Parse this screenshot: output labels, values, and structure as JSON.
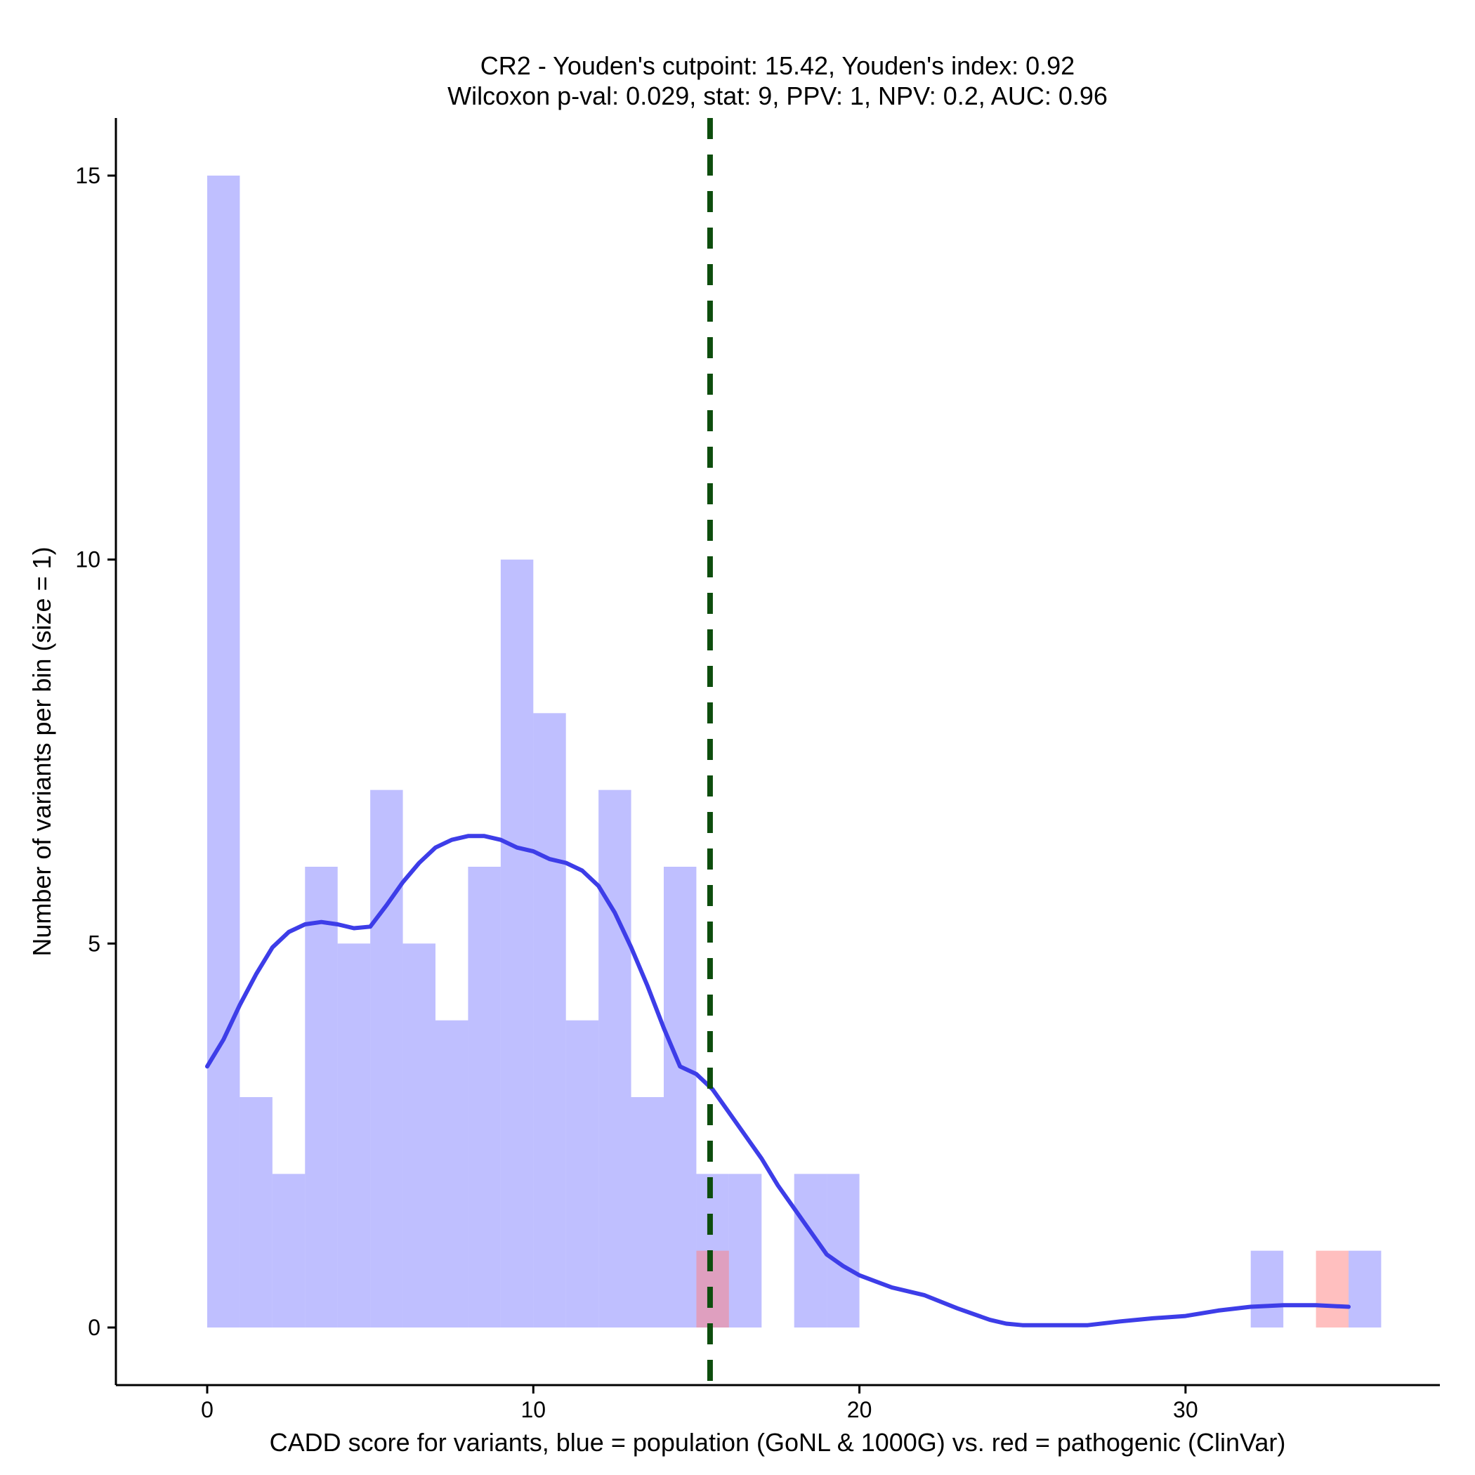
{
  "chart_data": {
    "type": "bar",
    "title_line1": "CR2 - Youden's cutpoint: 15.42, Youden's index: 0.92",
    "title_line2": "Wilcoxon p-val: 0.029, stat: 9, PPV: 1, NPV: 0.2, AUC: 0.96",
    "xlabel": "CADD score for variants, blue = population (GoNL & 1000G) vs. red = pathogenic (ClinVar)",
    "ylabel": "Number of variants per bin (size = 1)",
    "xlim": [
      -2.8,
      37.8
    ],
    "ylim": [
      -0.75,
      15.75
    ],
    "x_ticks": [
      0,
      10,
      20,
      30
    ],
    "x_tick_labels": [
      "0",
      "10",
      "20",
      "30"
    ],
    "y_ticks": [
      0,
      5,
      10,
      15
    ],
    "y_tick_labels": [
      "0",
      "5",
      "10",
      "15"
    ],
    "bin_width": 1,
    "colors": {
      "population": "#8080ff",
      "pathogenic": "#ff8080",
      "overlap": "#cc88bb",
      "density": "#3d3de8",
      "cutpoint": "#0d4d0d"
    },
    "series": [
      {
        "name": "population",
        "bins": [
          {
            "x0": 0,
            "count": 15
          },
          {
            "x0": 1,
            "count": 3
          },
          {
            "x0": 2,
            "count": 2
          },
          {
            "x0": 3,
            "count": 6
          },
          {
            "x0": 4,
            "count": 5
          },
          {
            "x0": 5,
            "count": 7
          },
          {
            "x0": 6,
            "count": 5
          },
          {
            "x0": 7,
            "count": 4
          },
          {
            "x0": 8,
            "count": 6
          },
          {
            "x0": 9,
            "count": 10
          },
          {
            "x0": 10,
            "count": 8
          },
          {
            "x0": 11,
            "count": 4
          },
          {
            "x0": 12,
            "count": 7
          },
          {
            "x0": 13,
            "count": 3
          },
          {
            "x0": 14,
            "count": 6
          },
          {
            "x0": 15,
            "count": 2
          },
          {
            "x0": 16,
            "count": 2
          },
          {
            "x0": 18,
            "count": 2
          },
          {
            "x0": 19,
            "count": 2
          },
          {
            "x0": 32,
            "count": 1
          },
          {
            "x0": 35,
            "count": 1
          }
        ]
      },
      {
        "name": "pathogenic",
        "bins": [
          {
            "x0": 15,
            "count": 1
          },
          {
            "x0": 34,
            "count": 1
          }
        ]
      }
    ],
    "density_curve": [
      [
        0,
        3.4
      ],
      [
        0.5,
        3.75
      ],
      [
        1,
        4.2
      ],
      [
        1.5,
        4.6
      ],
      [
        2,
        4.95
      ],
      [
        2.5,
        5.15
      ],
      [
        3,
        5.25
      ],
      [
        3.5,
        5.28
      ],
      [
        4,
        5.25
      ],
      [
        4.5,
        5.2
      ],
      [
        5,
        5.22
      ],
      [
        5.5,
        5.5
      ],
      [
        6,
        5.8
      ],
      [
        6.5,
        6.05
      ],
      [
        7,
        6.25
      ],
      [
        7.5,
        6.35
      ],
      [
        8,
        6.4
      ],
      [
        8.5,
        6.4
      ],
      [
        9,
        6.35
      ],
      [
        9.5,
        6.25
      ],
      [
        10,
        6.2
      ],
      [
        10.5,
        6.1
      ],
      [
        11,
        6.05
      ],
      [
        11.5,
        5.95
      ],
      [
        12,
        5.75
      ],
      [
        12.5,
        5.4
      ],
      [
        13,
        4.95
      ],
      [
        13.5,
        4.45
      ],
      [
        14,
        3.9
      ],
      [
        14.5,
        3.4
      ],
      [
        15,
        3.3
      ],
      [
        15.5,
        3.1
      ],
      [
        16,
        2.8
      ],
      [
        16.5,
        2.5
      ],
      [
        17,
        2.2
      ],
      [
        17.5,
        1.85
      ],
      [
        18,
        1.55
      ],
      [
        18.5,
        1.25
      ],
      [
        19,
        0.95
      ],
      [
        19.5,
        0.8
      ],
      [
        20,
        0.68
      ],
      [
        20.5,
        0.6
      ],
      [
        21,
        0.52
      ],
      [
        22,
        0.42
      ],
      [
        23,
        0.25
      ],
      [
        24,
        0.1
      ],
      [
        24.5,
        0.05
      ],
      [
        25,
        0.03
      ],
      [
        26,
        0.03
      ],
      [
        27,
        0.03
      ],
      [
        28,
        0.08
      ],
      [
        29,
        0.12
      ],
      [
        30,
        0.15
      ],
      [
        31,
        0.22
      ],
      [
        32,
        0.27
      ],
      [
        33,
        0.29
      ],
      [
        34,
        0.29
      ],
      [
        35,
        0.27
      ]
    ],
    "cutpoint": 15.42
  }
}
